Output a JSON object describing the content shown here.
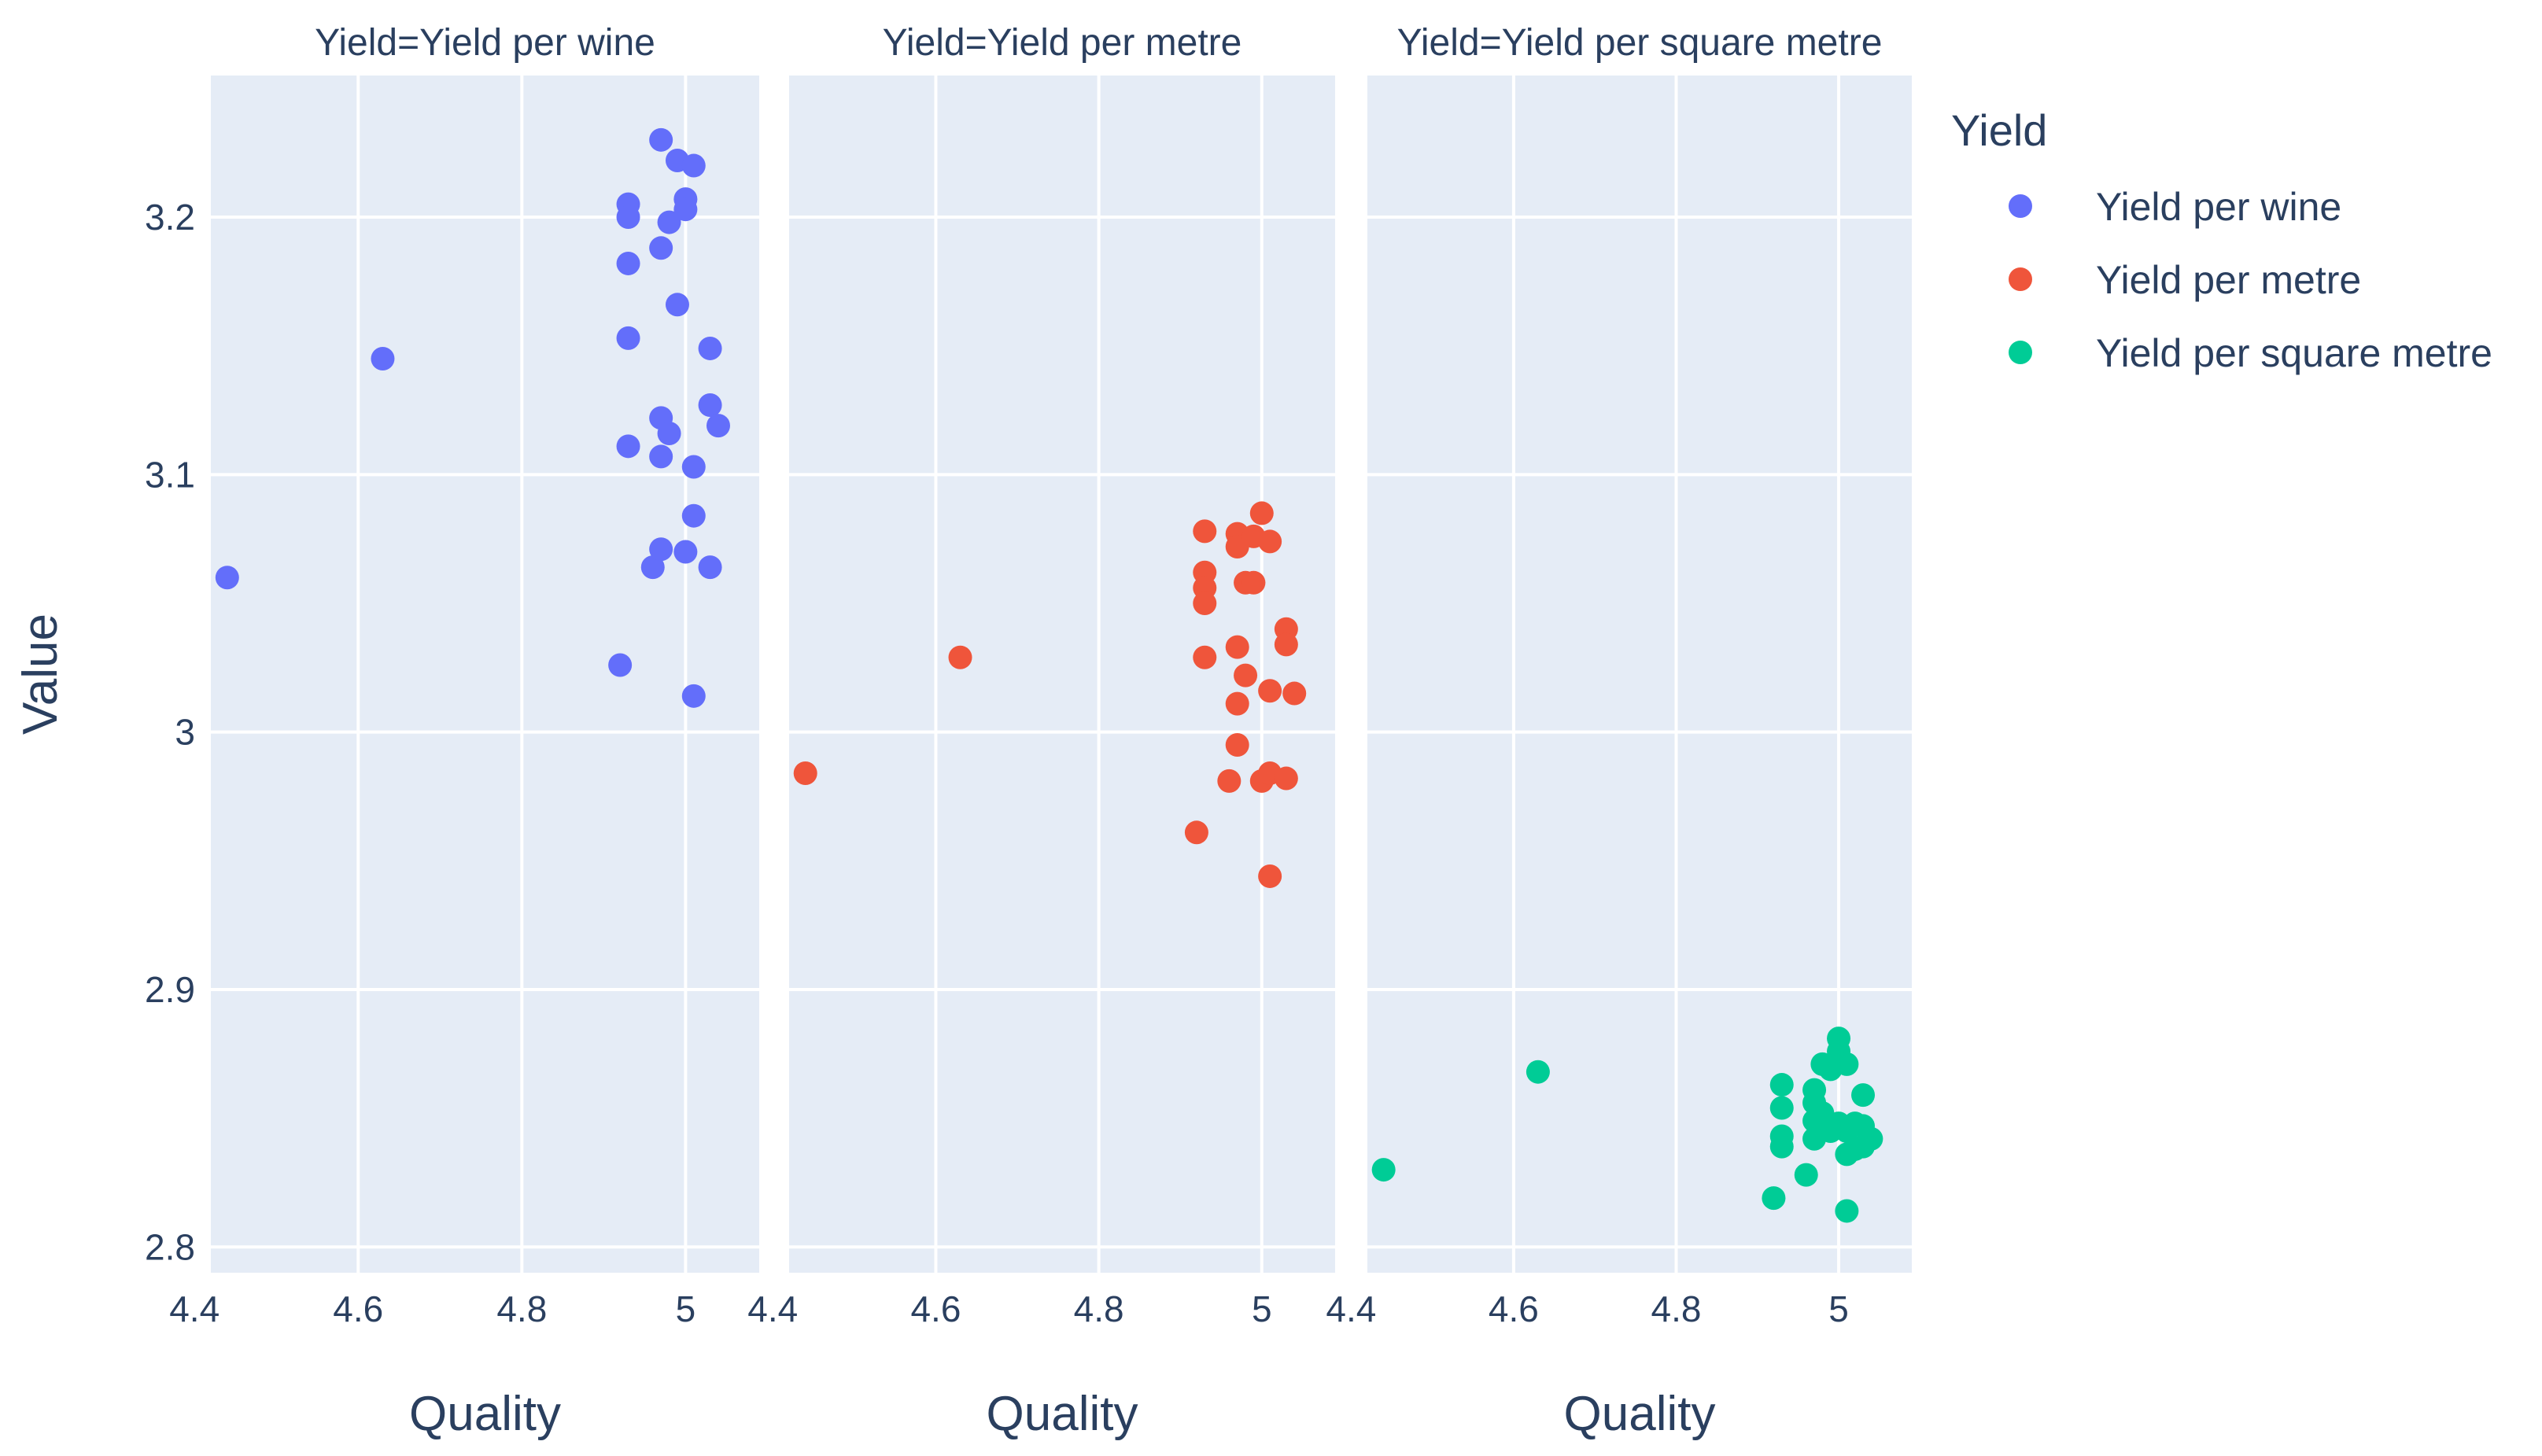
{
  "colors": {
    "background": "#ffffff",
    "plot_bg": "#e5ecf6",
    "grid": "#ffffff",
    "text": "#2a3f5f"
  },
  "chart_data": {
    "type": "scatter",
    "facet_by": "Yield",
    "ylabel": "Value",
    "ylim": [
      2.79,
      3.255
    ],
    "yticks": [
      2.8,
      2.9,
      3,
      3.1,
      3.2
    ],
    "ytick_labels": [
      "2.8",
      "2.9",
      "3",
      "3.1",
      "3.2"
    ],
    "grid": true,
    "legend": {
      "title": "Yield",
      "placement": "right",
      "entries": [
        {
          "label": "Yield per wine",
          "color": "#636efa"
        },
        {
          "label": "Yield per metre",
          "color": "#ef553b"
        },
        {
          "label": "Yield per square metre",
          "color": "#00cc96"
        }
      ]
    },
    "facets": [
      {
        "title": "Yield=Yield per wine",
        "xlabel": "Quality",
        "xlim": [
          4.42,
          5.09
        ],
        "xticks": [
          4.4,
          4.6,
          4.8,
          5
        ],
        "xtick_labels": [
          "4.4",
          "4.6",
          "4.8",
          "5"
        ],
        "color": "#636efa",
        "points": [
          {
            "x": 4.44,
            "y": 3.06
          },
          {
            "x": 4.63,
            "y": 3.145
          },
          {
            "x": 4.92,
            "y": 3.026
          },
          {
            "x": 4.93,
            "y": 3.205
          },
          {
            "x": 4.93,
            "y": 3.2
          },
          {
            "x": 4.93,
            "y": 3.182
          },
          {
            "x": 4.93,
            "y": 3.153
          },
          {
            "x": 4.93,
            "y": 3.111
          },
          {
            "x": 4.96,
            "y": 3.064
          },
          {
            "x": 4.97,
            "y": 3.23
          },
          {
            "x": 4.97,
            "y": 3.188
          },
          {
            "x": 4.97,
            "y": 3.122
          },
          {
            "x": 4.97,
            "y": 3.107
          },
          {
            "x": 4.97,
            "y": 3.071
          },
          {
            "x": 4.98,
            "y": 3.198
          },
          {
            "x": 4.98,
            "y": 3.116
          },
          {
            "x": 4.99,
            "y": 3.222
          },
          {
            "x": 4.99,
            "y": 3.166
          },
          {
            "x": 5.0,
            "y": 3.207
          },
          {
            "x": 5.0,
            "y": 3.203
          },
          {
            "x": 5.0,
            "y": 3.07
          },
          {
            "x": 5.01,
            "y": 3.22
          },
          {
            "x": 5.01,
            "y": 3.103
          },
          {
            "x": 5.01,
            "y": 3.084
          },
          {
            "x": 5.01,
            "y": 3.014
          },
          {
            "x": 5.03,
            "y": 3.149
          },
          {
            "x": 5.03,
            "y": 3.127
          },
          {
            "x": 5.03,
            "y": 3.064
          },
          {
            "x": 5.04,
            "y": 3.119
          }
        ]
      },
      {
        "title": "Yield=Yield per metre",
        "xlabel": "Quality",
        "xlim": [
          4.42,
          5.09
        ],
        "xticks": [
          4.4,
          4.6,
          4.8,
          5
        ],
        "xtick_labels": [
          "4.4",
          "4.6",
          "4.8",
          "5"
        ],
        "color": "#ef553b",
        "points": [
          {
            "x": 4.44,
            "y": 2.984
          },
          {
            "x": 4.63,
            "y": 3.029
          },
          {
            "x": 4.92,
            "y": 2.961
          },
          {
            "x": 4.93,
            "y": 3.078
          },
          {
            "x": 4.93,
            "y": 3.062
          },
          {
            "x": 4.93,
            "y": 3.056
          },
          {
            "x": 4.93,
            "y": 3.05
          },
          {
            "x": 4.93,
            "y": 3.029
          },
          {
            "x": 4.96,
            "y": 2.981
          },
          {
            "x": 4.97,
            "y": 3.077
          },
          {
            "x": 4.97,
            "y": 3.072
          },
          {
            "x": 4.97,
            "y": 3.033
          },
          {
            "x": 4.97,
            "y": 3.011
          },
          {
            "x": 4.97,
            "y": 2.995
          },
          {
            "x": 4.98,
            "y": 3.058
          },
          {
            "x": 4.98,
            "y": 3.022
          },
          {
            "x": 4.99,
            "y": 3.076
          },
          {
            "x": 4.99,
            "y": 3.058
          },
          {
            "x": 5.0,
            "y": 3.085
          },
          {
            "x": 5.0,
            "y": 2.981
          },
          {
            "x": 5.01,
            "y": 3.074
          },
          {
            "x": 5.01,
            "y": 3.016
          },
          {
            "x": 5.01,
            "y": 2.984
          },
          {
            "x": 5.01,
            "y": 2.944
          },
          {
            "x": 5.03,
            "y": 3.04
          },
          {
            "x": 5.03,
            "y": 3.034
          },
          {
            "x": 5.03,
            "y": 2.982
          },
          {
            "x": 5.04,
            "y": 3.015
          }
        ]
      },
      {
        "title": "Yield=Yield per square metre",
        "xlabel": "Quality",
        "xlim": [
          4.42,
          5.09
        ],
        "xticks": [
          4.4,
          4.6,
          4.8,
          5
        ],
        "xtick_labels": [
          "4.4",
          "4.6",
          "4.8",
          "5"
        ],
        "color": "#00cc96",
        "points": [
          {
            "x": 4.44,
            "y": 2.83
          },
          {
            "x": 4.63,
            "y": 2.868
          },
          {
            "x": 4.92,
            "y": 2.819
          },
          {
            "x": 4.93,
            "y": 2.863
          },
          {
            "x": 4.93,
            "y": 2.854
          },
          {
            "x": 4.93,
            "y": 2.843
          },
          {
            "x": 4.93,
            "y": 2.839
          },
          {
            "x": 4.96,
            "y": 2.828
          },
          {
            "x": 4.97,
            "y": 2.861
          },
          {
            "x": 4.97,
            "y": 2.856
          },
          {
            "x": 4.97,
            "y": 2.849
          },
          {
            "x": 4.97,
            "y": 2.842
          },
          {
            "x": 4.98,
            "y": 2.871
          },
          {
            "x": 4.98,
            "y": 2.852
          },
          {
            "x": 4.99,
            "y": 2.869
          },
          {
            "x": 4.99,
            "y": 2.845
          },
          {
            "x": 5.0,
            "y": 2.881
          },
          {
            "x": 5.0,
            "y": 2.876
          },
          {
            "x": 5.0,
            "y": 2.848
          },
          {
            "x": 5.01,
            "y": 2.871
          },
          {
            "x": 5.01,
            "y": 2.845
          },
          {
            "x": 5.01,
            "y": 2.836
          },
          {
            "x": 5.01,
            "y": 2.814
          },
          {
            "x": 5.02,
            "y": 2.848
          },
          {
            "x": 5.02,
            "y": 2.838
          },
          {
            "x": 5.03,
            "y": 2.859
          },
          {
            "x": 5.03,
            "y": 2.847
          },
          {
            "x": 5.03,
            "y": 2.839
          },
          {
            "x": 5.04,
            "y": 2.842
          }
        ]
      }
    ]
  }
}
